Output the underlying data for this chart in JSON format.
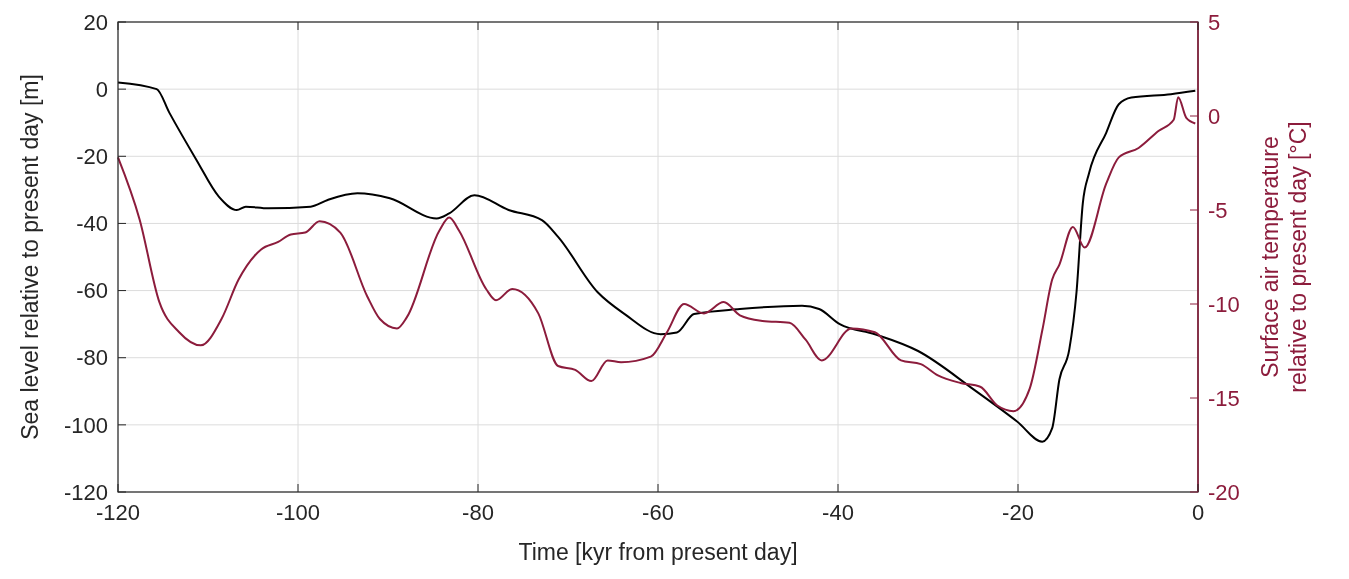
{
  "chart_data": {
    "type": "line",
    "xlabel": "Time [kyr from present day]",
    "ylabel": "Sea level relative to present day [m]",
    "y2label": "Surface air temperature\nrelative to present day [°C]",
    "xlim": [
      -120,
      0
    ],
    "xticks": [
      -120,
      -100,
      -80,
      -60,
      -40,
      -20,
      0
    ],
    "ylim": [
      -120,
      20
    ],
    "yticks": [
      -120,
      -100,
      -80,
      -60,
      -40,
      -20,
      0,
      20
    ],
    "y2lim": [
      -20,
      5
    ],
    "y2ticks": [
      -20,
      -15,
      -10,
      -5,
      0,
      5
    ],
    "grid": true,
    "line_style": "solid",
    "marker": "none",
    "series": [
      {
        "color": "#000000",
        "x": [
          -120,
          -115.7,
          -114.3,
          -111.3,
          -108.8,
          -106.8,
          -105.8,
          -103.3,
          -98.6,
          -96.7,
          -93.4,
          -89.8,
          -84.6,
          -83.2,
          -80.4,
          -76.6,
          -72.9,
          -71.1,
          -66.7,
          -63.7,
          -59.7,
          -57.9,
          -56,
          -50.9,
          -44,
          -42.1,
          -39.8,
          -35.9,
          -31.1,
          -24.9,
          -20.1,
          -17.3,
          -16.2,
          -15.4,
          -14.3,
          -13.5,
          -12.8,
          -12.1,
          -10.2,
          -8.8,
          -7.4,
          -3,
          -0.3
        ],
        "values": [
          2,
          0,
          -7,
          -21,
          -32,
          -36,
          -35,
          -35.5,
          -35,
          -33,
          -31,
          -32.5,
          -38.5,
          -37,
          -31.6,
          -36,
          -39,
          -44,
          -60.5,
          -67,
          -73,
          -72.5,
          -67,
          -65.5,
          -64.5,
          -65.5,
          -70,
          -73,
          -78,
          -89.5,
          -99,
          -105,
          -101,
          -86.5,
          -77.5,
          -60.5,
          -34,
          -25,
          -13,
          -4.5,
          -2.5,
          -1.5,
          -0.5
        ]
      },
      {
        "color": "#8c1c3c",
        "axis": "y2",
        "x": [
          -120,
          -117.6,
          -115.4,
          -113.2,
          -110.8,
          -108.5,
          -106.6,
          -104.1,
          -102.2,
          -100.8,
          -99.2,
          -97.6,
          -95.3,
          -92.3,
          -90.9,
          -89,
          -87.9,
          -84.3,
          -83.2,
          -82.1,
          -79.1,
          -78,
          -76.2,
          -73.3,
          -71.1,
          -69.2,
          -67.4,
          -65.6,
          -64.1,
          -60.8,
          -59,
          -57.1,
          -54.9,
          -52.7,
          -50.9,
          -48.4,
          -45.4,
          -43.6,
          -41.8,
          -38.5,
          -35.9,
          -33,
          -30.8,
          -28.9,
          -26.4,
          -24.2,
          -22.3,
          -20.5,
          -18.7,
          -17.3,
          -16.2,
          -15.4,
          -13.9,
          -12.6,
          -10.2,
          -8.8,
          -6.6,
          -4.4,
          -2.7,
          -2.2,
          -1.3,
          -0.3
        ],
        "values": [
          -2.2,
          -5.5,
          -9.9,
          -11.5,
          -12.2,
          -10.8,
          -8.7,
          -7.1,
          -6.7,
          -6.3,
          -6.2,
          -5.6,
          -6.2,
          -9.6,
          -10.8,
          -11.3,
          -10.7,
          -6.1,
          -5.4,
          -6.1,
          -9.2,
          -9.8,
          -9.2,
          -10.5,
          -13.3,
          -13.5,
          -14.1,
          -13,
          -13.1,
          -12.8,
          -11.5,
          -10,
          -10.5,
          -9.9,
          -10.6,
          -10.9,
          -11,
          -11.9,
          -13,
          -11.3,
          -11.5,
          -13,
          -13.2,
          -13.8,
          -14.2,
          -14.4,
          -15.4,
          -15.7,
          -14.5,
          -11.4,
          -8.7,
          -7.9,
          -5.9,
          -7,
          -3.6,
          -2.2,
          -1.7,
          -0.8,
          -0.2,
          1,
          -0.1,
          -0.4
        ]
      }
    ]
  }
}
